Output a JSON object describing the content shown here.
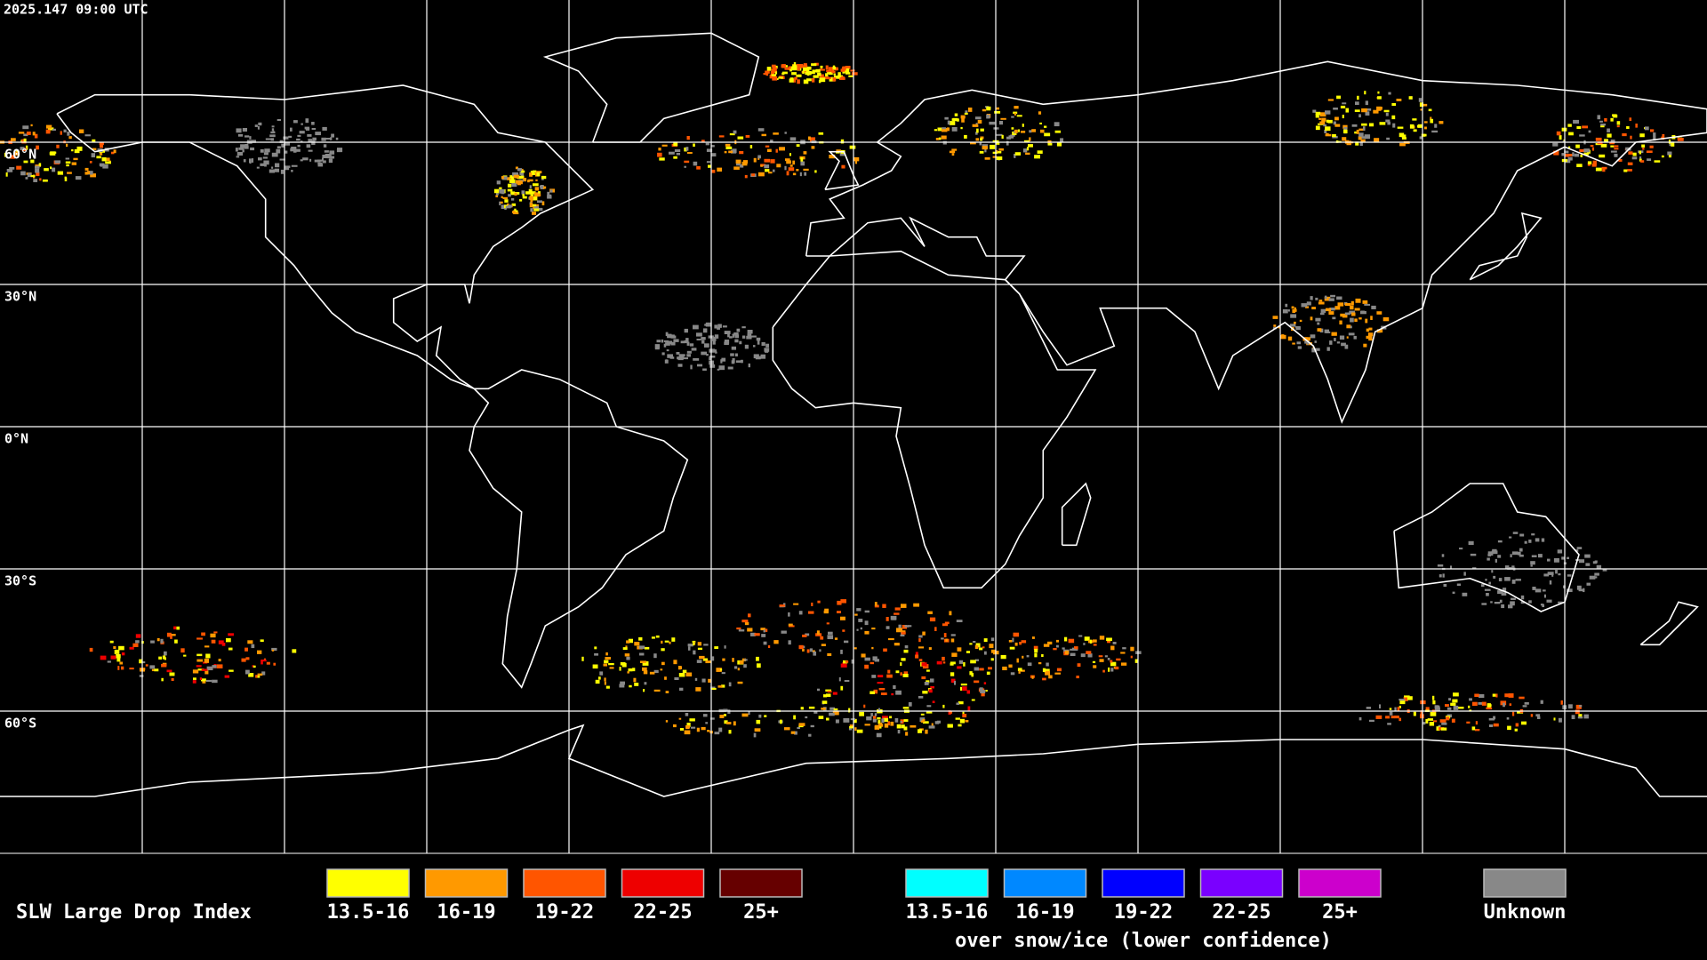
{
  "timestamp": "2025.147 09:00 UTC",
  "latitude_labels": [
    "60°N",
    "30°N",
    "0°N",
    "30°S",
    "60°S"
  ],
  "legend": {
    "title": "SLW Large Drop Index",
    "groups": [
      {
        "items": [
          {
            "label": "13.5-16",
            "color": "#ffff00"
          },
          {
            "label": "16-19",
            "color": "#ff9900"
          },
          {
            "label": "19-22",
            "color": "#ff5500"
          },
          {
            "label": "22-25",
            "color": "#ee0000"
          },
          {
            "label": "25+",
            "color": "#660000"
          }
        ]
      },
      {
        "items": [
          {
            "label": "13.5-16",
            "color": "#00ffff"
          },
          {
            "label": "16-19",
            "color": "#0088ff"
          },
          {
            "label": "19-22",
            "color": "#0000ff"
          },
          {
            "label": "22-25",
            "color": "#7a00ff"
          },
          {
            "label": "25+",
            "color": "#cc00cc"
          }
        ],
        "note": "over snow/ice (lower confidence)"
      }
    ],
    "unknown": {
      "label": "Unknown",
      "color": "#888888"
    }
  }
}
